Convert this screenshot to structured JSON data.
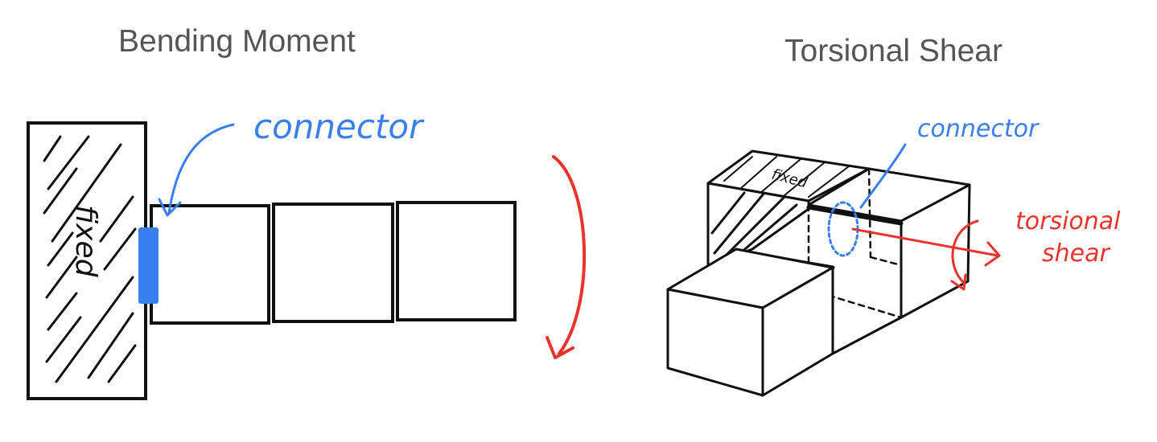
{
  "titles": {
    "left": "Bending Moment",
    "right": "Torsional Shear"
  },
  "labels": {
    "fixed_left": "fixed",
    "fixed_right": "fixed",
    "connector_left": "connector",
    "connector_right": "connector",
    "torsional_line1": "torsional",
    "torsional_line2": "shear"
  },
  "colors": {
    "ink": "#111111",
    "blue": "#3a7ff0",
    "red": "#e8342c"
  }
}
